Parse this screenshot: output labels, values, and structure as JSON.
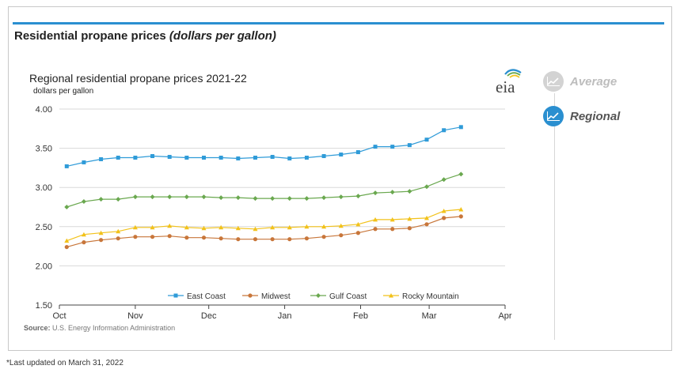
{
  "page": {
    "heading": "Residential propane prices",
    "heading_unit": "(dollars per gallon)",
    "source_label": "Source:",
    "source_text": "U.S. Energy Information Administration",
    "footnote": "*Last updated on March 31, 2022",
    "logo_text": "eia"
  },
  "toggles": [
    {
      "label": "Average",
      "icon": "line-chart-icon",
      "active": false
    },
    {
      "label": "Regional",
      "icon": "line-chart-icon",
      "active": true
    }
  ],
  "colors": {
    "accent": "#2a8fd0",
    "east_coast": "#2f9bd8",
    "midwest": "#c8763a",
    "gulf_coast": "#6aa84f",
    "rocky_mountain": "#f2c21a"
  },
  "chart_data": {
    "type": "line",
    "title": "Regional residential propane prices 2021-22",
    "ylabel": "dollars per gallon",
    "ylim": [
      1.5,
      4.0
    ],
    "yticks": [
      "1.50",
      "2.00",
      "2.50",
      "3.00",
      "3.50",
      "4.00"
    ],
    "xticks": [
      "Oct",
      "Nov",
      "Dec",
      "Jan",
      "Feb",
      "Mar",
      "Apr"
    ],
    "xlim": [
      "2021-10-01",
      "2022-04-01"
    ],
    "grid": true,
    "legend_position": "bottom",
    "x": [
      "2021-10-04",
      "2021-10-11",
      "2021-10-18",
      "2021-10-25",
      "2021-11-01",
      "2021-11-08",
      "2021-11-15",
      "2021-11-22",
      "2021-11-29",
      "2021-12-06",
      "2021-12-13",
      "2021-12-20",
      "2021-12-27",
      "2022-01-03",
      "2022-01-10",
      "2022-01-17",
      "2022-01-24",
      "2022-01-31",
      "2022-02-07",
      "2022-02-14",
      "2022-02-21",
      "2022-02-28",
      "2022-03-07",
      "2022-03-14"
    ],
    "series": [
      {
        "name": "East Coast",
        "marker": "square",
        "color": "#2f9bd8",
        "values": [
          3.27,
          3.32,
          3.36,
          3.38,
          3.38,
          3.4,
          3.39,
          3.38,
          3.38,
          3.38,
          3.37,
          3.38,
          3.39,
          3.37,
          3.38,
          3.4,
          3.42,
          3.45,
          3.52,
          3.52,
          3.54,
          3.61,
          3.73,
          3.77
        ]
      },
      {
        "name": "Midwest",
        "marker": "circle",
        "color": "#c8763a",
        "values": [
          2.24,
          2.3,
          2.33,
          2.35,
          2.37,
          2.37,
          2.38,
          2.36,
          2.36,
          2.35,
          2.34,
          2.34,
          2.34,
          2.34,
          2.35,
          2.37,
          2.39,
          2.42,
          2.47,
          2.47,
          2.48,
          2.53,
          2.61,
          2.63
        ]
      },
      {
        "name": "Gulf Coast",
        "marker": "diamond",
        "color": "#6aa84f",
        "values": [
          2.75,
          2.82,
          2.85,
          2.85,
          2.88,
          2.88,
          2.88,
          2.88,
          2.88,
          2.87,
          2.87,
          2.86,
          2.86,
          2.86,
          2.86,
          2.87,
          2.88,
          2.89,
          2.93,
          2.94,
          2.95,
          3.01,
          3.1,
          3.17
        ]
      },
      {
        "name": "Rocky Mountain",
        "marker": "triangle",
        "color": "#f2c21a",
        "values": [
          2.32,
          2.4,
          2.42,
          2.44,
          2.49,
          2.49,
          2.51,
          2.49,
          2.48,
          2.49,
          2.48,
          2.47,
          2.49,
          2.49,
          2.5,
          2.5,
          2.51,
          2.53,
          2.59,
          2.59,
          2.6,
          2.61,
          2.7,
          2.72
        ]
      }
    ]
  }
}
